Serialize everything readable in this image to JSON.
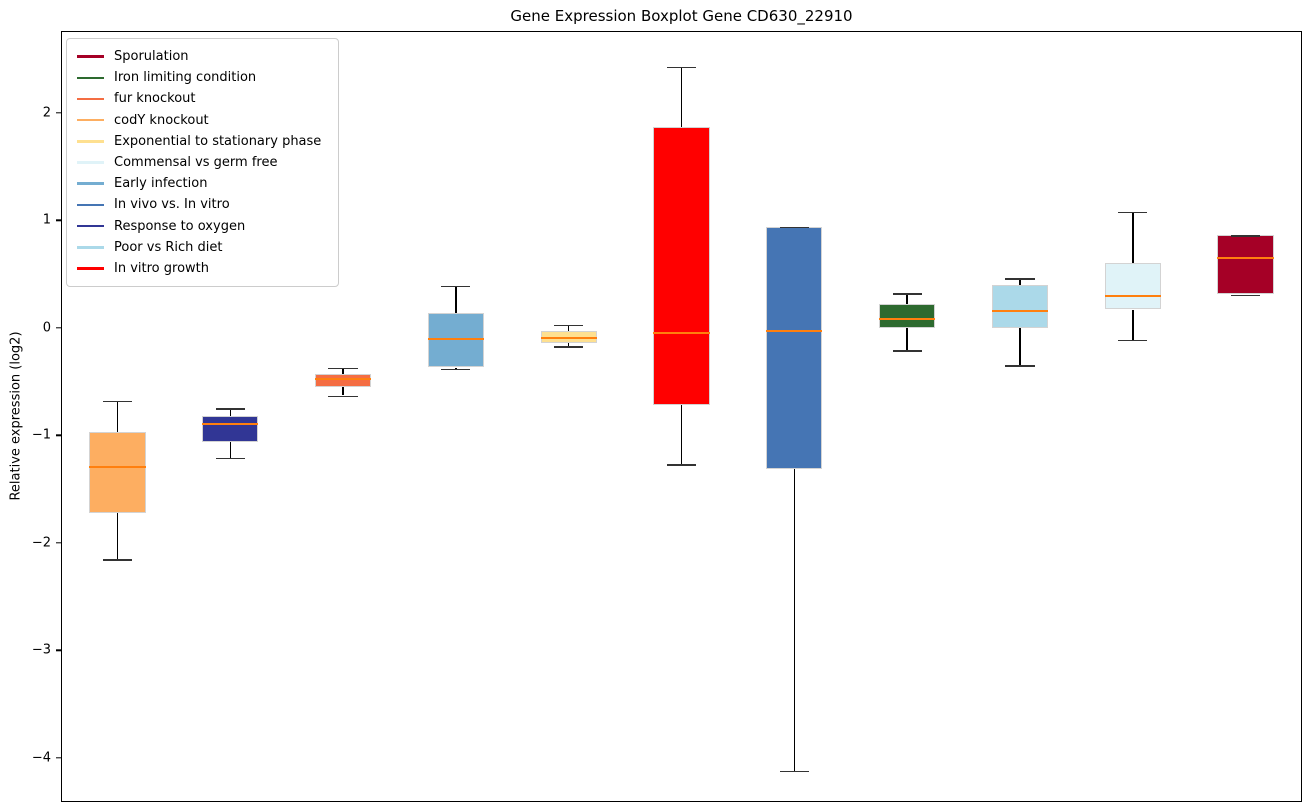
{
  "chart_data": {
    "type": "boxplot",
    "title": "Gene Expression Boxplot Gene CD630_22910",
    "ylabel": "Relative expression (log2)",
    "xlabel": "",
    "ylim": [
      -4.41,
      2.76
    ],
    "xlim": [
      0.5,
      11.5
    ],
    "yticks": [
      2,
      1,
      0,
      -1,
      -2,
      -3,
      -4
    ],
    "grid": false,
    "legend_position": "upper left",
    "median_color": "#ff7f0e",
    "box_width_units": 0.5,
    "series": [
      {
        "position": 1,
        "name": "codY knockout",
        "color": "#fdae61",
        "whislo": -2.15,
        "q1": -1.72,
        "med": -1.29,
        "q3": -0.97,
        "whishi": -0.68
      },
      {
        "position": 2,
        "name": "Response to oxygen",
        "color": "#313695",
        "whislo": -1.21,
        "q1": -1.06,
        "med": -0.89,
        "q3": -0.82,
        "whishi": -0.75
      },
      {
        "position": 3,
        "name": "fur knockout",
        "color": "#f46d43",
        "whislo": -0.63,
        "q1": -0.55,
        "med": -0.48,
        "q3": -0.43,
        "whishi": -0.37
      },
      {
        "position": 4,
        "name": "Early infection",
        "color": "#74add1",
        "whislo": -0.38,
        "q1": -0.37,
        "med": -0.1,
        "q3": 0.14,
        "whishi": 0.39
      },
      {
        "position": 5,
        "name": "Exponential to stationary phase",
        "color": "#fee090",
        "whislo": -0.17,
        "q1": -0.14,
        "med": -0.09,
        "q3": -0.03,
        "whishi": 0.03
      },
      {
        "position": 6,
        "name": "In vitro growth",
        "color": "#ff0000",
        "whislo": -1.27,
        "q1": -0.72,
        "med": -0.05,
        "q3": 1.87,
        "whishi": 2.43
      },
      {
        "position": 7,
        "name": "In vivo vs. In vitro",
        "color": "#4575b4",
        "whislo": -4.12,
        "q1": -1.31,
        "med": -0.03,
        "q3": 0.94,
        "whishi": 0.94
      },
      {
        "position": 8,
        "name": "Iron limiting condition",
        "color": "#2d6a2f",
        "whislo": -0.21,
        "q1": 0.0,
        "med": 0.08,
        "q3": 0.22,
        "whishi": 0.32
      },
      {
        "position": 9,
        "name": "Poor vs Rich diet",
        "color": "#abd9e9",
        "whislo": -0.35,
        "q1": 0.0,
        "med": 0.16,
        "q3": 0.4,
        "whishi": 0.46
      },
      {
        "position": 10,
        "name": "Commensal vs germ free",
        "color": "#e0f3f8",
        "whislo": -0.11,
        "q1": 0.17,
        "med": 0.3,
        "q3": 0.6,
        "whishi": 1.08
      },
      {
        "position": 11,
        "name": "Sporulation",
        "color": "#a50026",
        "whislo": 0.31,
        "q1": 0.31,
        "med": 0.645,
        "q3": 0.86,
        "whishi": 0.86
      }
    ],
    "legend": [
      {
        "label": "Sporulation",
        "color": "#a50026"
      },
      {
        "label": "Iron limiting condition",
        "color": "#2d6a2f"
      },
      {
        "label": "fur knockout",
        "color": "#f46d43"
      },
      {
        "label": "codY knockout",
        "color": "#fdae61"
      },
      {
        "label": "Exponential to stationary phase",
        "color": "#fee090"
      },
      {
        "label": "Commensal vs germ free",
        "color": "#e0f3f8"
      },
      {
        "label": "Early infection",
        "color": "#74add1"
      },
      {
        "label": "In vivo vs. In vitro",
        "color": "#4575b4"
      },
      {
        "label": "Response to oxygen",
        "color": "#313695"
      },
      {
        "label": "Poor vs Rich diet",
        "color": "#abd9e9"
      },
      {
        "label": "In vitro growth",
        "color": "#ff0000"
      }
    ]
  }
}
